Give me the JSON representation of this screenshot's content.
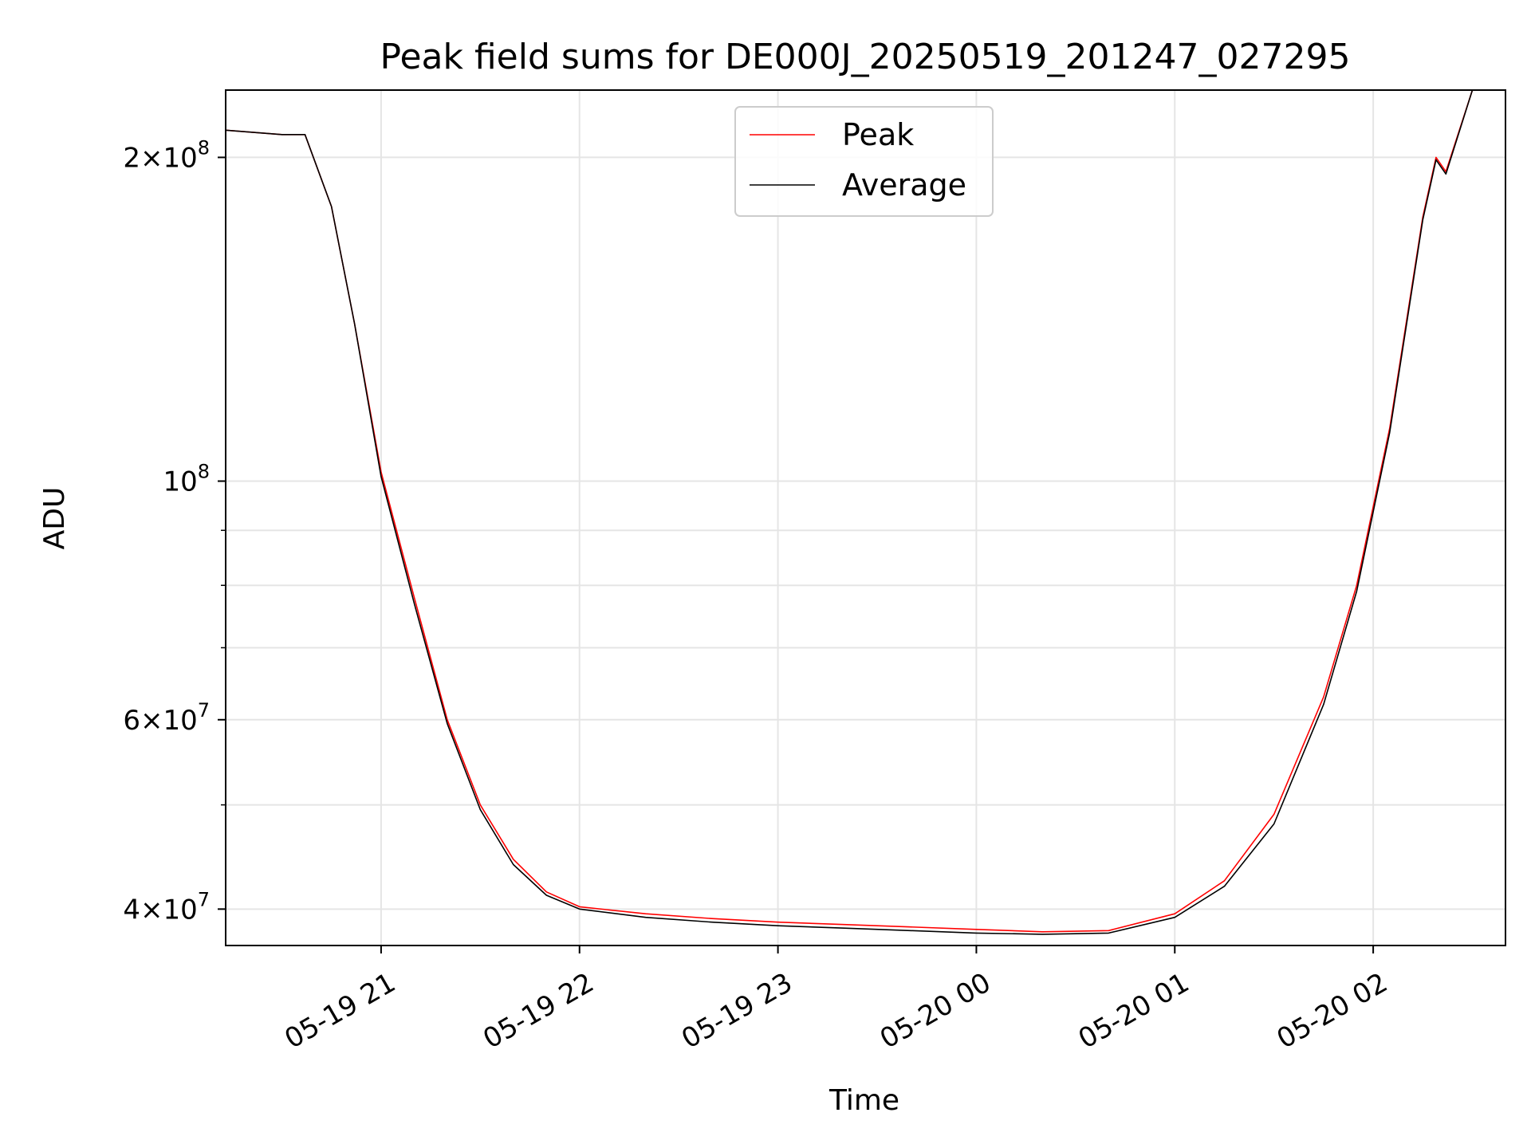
{
  "chart_data": {
    "type": "line",
    "title": "Peak field sums for DE000J_20250519_201247_027295",
    "xlabel": "Time",
    "ylabel": "ADU",
    "y_scale": "log",
    "ylim": [
      37000000,
      231000000
    ],
    "xlim": [
      "2025-05-19 20:13",
      "2025-05-20 02:40"
    ],
    "grid": true,
    "legend_position": "top-center",
    "x_ticks": [
      {
        "t": "2025-05-19 21:00",
        "label": "05-19 21"
      },
      {
        "t": "2025-05-19 22:00",
        "label": "05-19 22"
      },
      {
        "t": "2025-05-19 23:00",
        "label": "05-19 23"
      },
      {
        "t": "2025-05-20 00:00",
        "label": "05-20 00"
      },
      {
        "t": "2025-05-20 01:00",
        "label": "05-20 01"
      },
      {
        "t": "2025-05-20 02:00",
        "label": "05-20 02"
      }
    ],
    "y_ticks": [
      {
        "value": 200000000,
        "mantissa": "2",
        "exponent": "8"
      },
      {
        "value": 100000000,
        "mantissa": "",
        "exponent": "8"
      },
      {
        "value": 60000000,
        "mantissa": "6",
        "exponent": "7"
      },
      {
        "value": 40000000,
        "mantissa": "4",
        "exponent": "7"
      }
    ],
    "y_minor_ticks": [
      50000000,
      70000000,
      80000000,
      90000000
    ],
    "series": [
      {
        "name": "Peak",
        "color": "#ff0000",
        "x": [
          "2025-05-19 20:13",
          "2025-05-19 20:30",
          "2025-05-19 20:37",
          "2025-05-19 20:45",
          "2025-05-19 20:52",
          "2025-05-19 21:00",
          "2025-05-19 21:10",
          "2025-05-19 21:20",
          "2025-05-19 21:30",
          "2025-05-19 21:40",
          "2025-05-19 21:50",
          "2025-05-19 22:00",
          "2025-05-19 22:20",
          "2025-05-19 22:40",
          "2025-05-19 23:00",
          "2025-05-19 23:20",
          "2025-05-19 23:40",
          "2025-05-20 00:00",
          "2025-05-20 00:20",
          "2025-05-20 00:40",
          "2025-05-20 01:00",
          "2025-05-20 01:15",
          "2025-05-20 01:30",
          "2025-05-20 01:45",
          "2025-05-20 01:55",
          "2025-05-20 02:05",
          "2025-05-20 02:15",
          "2025-05-20 02:19",
          "2025-05-20 02:22",
          "2025-05-20 02:30"
        ],
        "values": [
          212000000,
          210000000,
          210000000,
          180000000,
          140000000,
          102000000,
          78000000,
          60000000,
          50000000,
          44500000,
          41500000,
          40200000,
          39600000,
          39200000,
          38900000,
          38700000,
          38500000,
          38300000,
          38100000,
          38200000,
          39600000,
          42500000,
          49000000,
          63000000,
          80000000,
          112000000,
          176000000,
          200000000,
          194000000,
          231000000
        ]
      },
      {
        "name": "Average",
        "color": "#000000",
        "x": [
          "2025-05-19 20:13",
          "2025-05-19 20:30",
          "2025-05-19 20:37",
          "2025-05-19 20:45",
          "2025-05-19 20:52",
          "2025-05-19 21:00",
          "2025-05-19 21:10",
          "2025-05-19 21:20",
          "2025-05-19 21:30",
          "2025-05-19 21:40",
          "2025-05-19 21:50",
          "2025-05-19 22:00",
          "2025-05-19 22:20",
          "2025-05-19 22:40",
          "2025-05-19 23:00",
          "2025-05-19 23:20",
          "2025-05-19 23:40",
          "2025-05-20 00:00",
          "2025-05-20 00:20",
          "2025-05-20 00:40",
          "2025-05-20 01:00",
          "2025-05-20 01:15",
          "2025-05-20 01:30",
          "2025-05-20 01:45",
          "2025-05-20 01:55",
          "2025-05-20 02:05",
          "2025-05-20 02:15",
          "2025-05-20 02:19",
          "2025-05-20 02:22",
          "2025-05-20 02:30"
        ],
        "values": [
          212000000,
          210000000,
          210000000,
          180000000,
          140000000,
          101000000,
          77000000,
          59500000,
          49500000,
          44000000,
          41200000,
          40000000,
          39300000,
          38900000,
          38600000,
          38400000,
          38200000,
          38000000,
          37900000,
          38000000,
          39300000,
          42000000,
          48000000,
          62000000,
          79000000,
          111000000,
          175000000,
          199000000,
          193000000,
          231000000
        ]
      }
    ]
  }
}
